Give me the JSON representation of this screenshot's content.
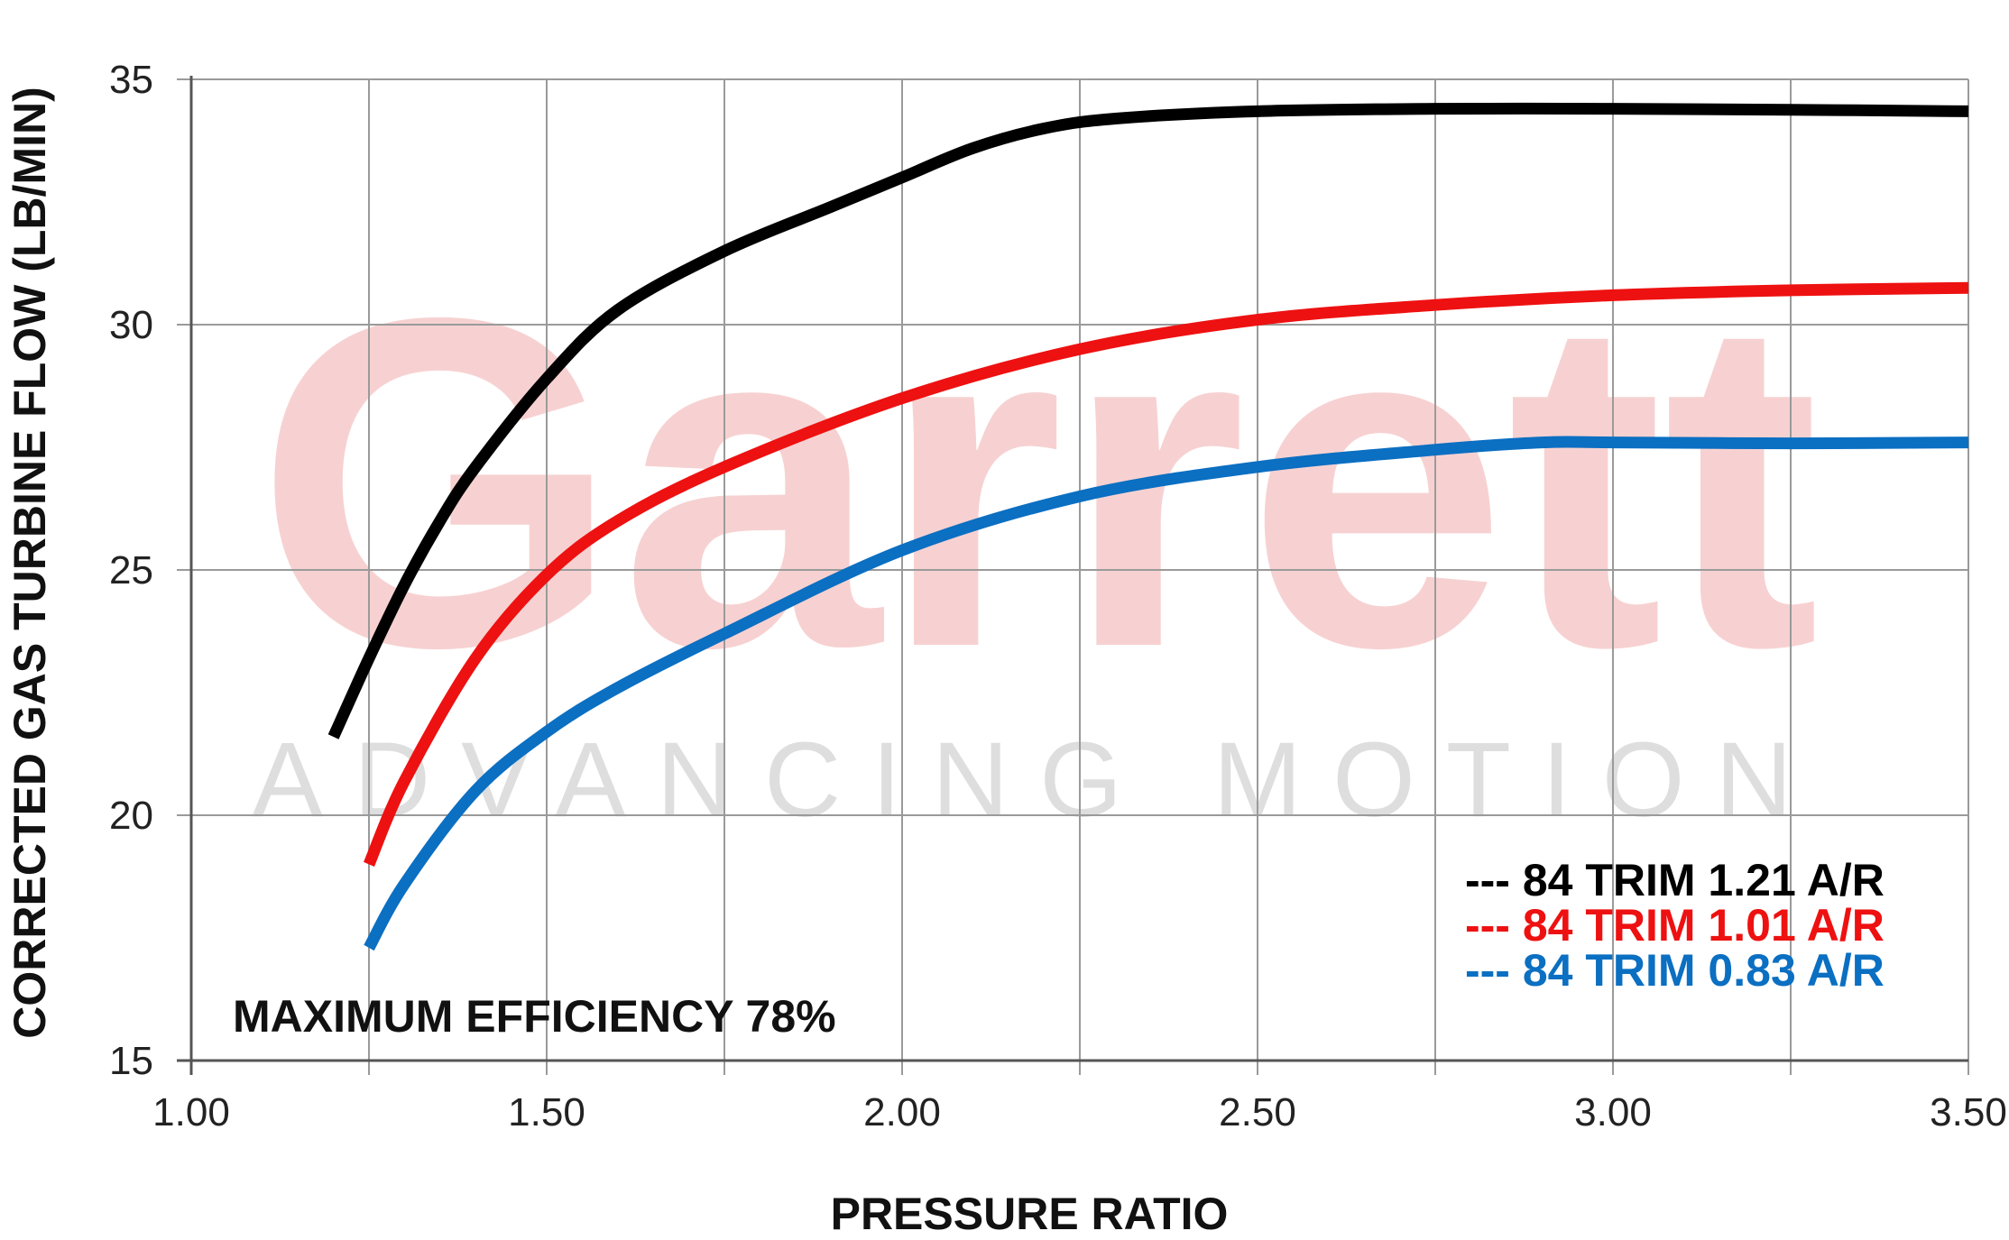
{
  "watermark": {
    "brand": "Garrett",
    "tagline": "ADVANCING MOTION"
  },
  "chart_data": {
    "type": "line",
    "xlabel": "PRESSURE RATIO",
    "ylabel": "CORRECTED GAS TURBINE FLOW (LB/MIN)",
    "xlim": [
      1.0,
      3.5
    ],
    "ylim": [
      15,
      35
    ],
    "x_ticks": [
      "1.00",
      "1.50",
      "2.00",
      "2.50",
      "3.00",
      "3.50"
    ],
    "y_ticks": [
      "15",
      "20",
      "25",
      "30",
      "35"
    ],
    "x_grid_step": 0.25,
    "grid": true,
    "legend_position": "bottom-right",
    "annotation": "MAXIMUM EFFICIENCY 78%",
    "series": [
      {
        "name": "84 TRIM 1.21 A/R",
        "legend_label": "--- 84 TRIM 1.21 A/R",
        "color": "#000000",
        "x": [
          1.2,
          1.25,
          1.3,
          1.35,
          1.4,
          1.5,
          1.6,
          1.75,
          1.9,
          2.0,
          2.1,
          2.2,
          2.3,
          2.5,
          2.75,
          3.0,
          3.25,
          3.5
        ],
        "y": [
          21.6,
          23.2,
          24.7,
          26.0,
          27.1,
          28.9,
          30.3,
          31.5,
          32.4,
          33.0,
          33.6,
          34.0,
          34.2,
          34.35,
          34.4,
          34.4,
          34.38,
          34.35
        ]
      },
      {
        "name": "84 TRIM 1.01 A/R",
        "legend_label": "--- 84 TRIM 1.01 A/R",
        "color": "#ee1111",
        "x": [
          1.25,
          1.3,
          1.4,
          1.5,
          1.6,
          1.75,
          2.0,
          2.25,
          2.5,
          2.75,
          3.0,
          3.25,
          3.5
        ],
        "y": [
          19.0,
          20.7,
          23.2,
          24.9,
          26.0,
          27.1,
          28.5,
          29.5,
          30.1,
          30.4,
          30.6,
          30.7,
          30.75
        ]
      },
      {
        "name": "84 TRIM 0.83 A/R",
        "legend_label": "--- 84 TRIM 0.83 A/R",
        "color": "#0b6fc2",
        "x": [
          1.25,
          1.3,
          1.4,
          1.5,
          1.6,
          1.75,
          2.0,
          2.25,
          2.5,
          2.75,
          2.9,
          3.0,
          3.25,
          3.5
        ],
        "y": [
          17.3,
          18.6,
          20.5,
          21.7,
          22.6,
          23.7,
          25.4,
          26.5,
          27.1,
          27.45,
          27.6,
          27.6,
          27.58,
          27.6
        ]
      }
    ]
  }
}
